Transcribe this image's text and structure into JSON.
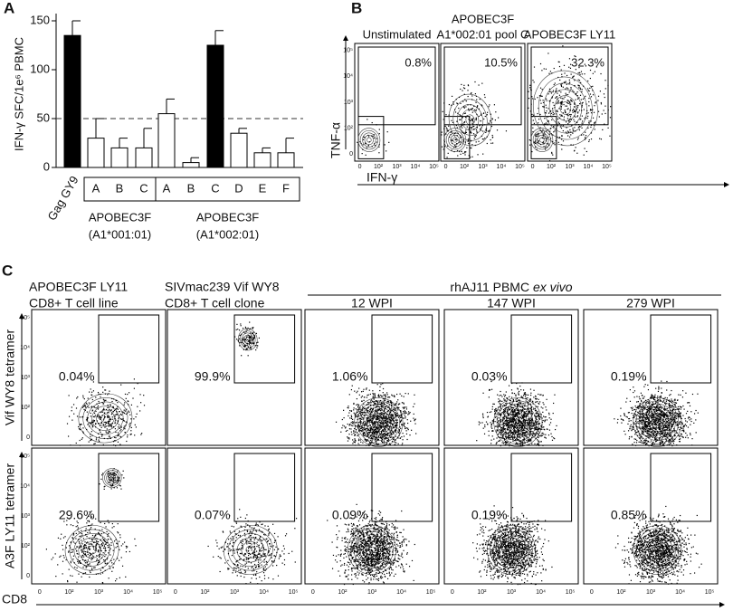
{
  "chart_data": {
    "type": "bar",
    "panel_label": "A",
    "y_label": "IFN-γ SFC/1e⁶ PBMC",
    "categories": [
      "Gag GY9",
      "A",
      "B",
      "C",
      "A",
      "B",
      "C",
      "D",
      "E",
      "F"
    ],
    "values": [
      135,
      30,
      20,
      20,
      55,
      5,
      125,
      35,
      15,
      15
    ],
    "errors": [
      15,
      20,
      10,
      20,
      15,
      5,
      15,
      5,
      5,
      15
    ],
    "colors": [
      "#000000",
      "#ffffff",
      "#ffffff",
      "#ffffff",
      "#ffffff",
      "#ffffff",
      "#000000",
      "#ffffff",
      "#ffffff",
      "#ffffff"
    ],
    "reference_line": 50,
    "groups": [
      {
        "name": "APOBEC3F",
        "allele": "(A1*001:01)"
      },
      {
        "name": "APOBEC3F",
        "allele": "(A1*002:01)"
      }
    ],
    "ylim": [
      0,
      150
    ],
    "yticks": [
      0,
      50,
      100,
      150
    ]
  },
  "panel_b": {
    "label": "B",
    "y_label": "TNF-α",
    "x_label": "IFN-γ",
    "plots": [
      {
        "title": [
          "Unstimulated"
        ],
        "percent": "0.8%"
      },
      {
        "title": [
          "APOBEC3F",
          "A1*002:01 pool C"
        ],
        "percent": "10.5%"
      },
      {
        "title": [
          "APOBEC3F LY11"
        ],
        "percent": "32.3%"
      }
    ]
  },
  "panel_c": {
    "label": "C",
    "columns": [
      [
        "APOBEC3F LY11",
        "CD8+ T cell line"
      ],
      [
        "SIVmac239 Vif WY8",
        "CD8+ T cell clone"
      ],
      [
        "12 WPI"
      ],
      [
        "147 WPI"
      ],
      [
        "279 WPI"
      ]
    ],
    "group_header": {
      "text": "rhAJ11 PBMC",
      "italic": "ex vivo"
    },
    "rows": [
      "Vif WY8 tetramer",
      "A3F LY11 tetramer"
    ],
    "x_label": "CD8",
    "percents": [
      [
        "0.04%",
        "99.9%",
        "1.06%",
        "0.03%",
        "0.19%"
      ],
      [
        "29.6%",
        "0.07%",
        "0.09%",
        "0.19%",
        "0.85%"
      ]
    ]
  },
  "axis_ticks": [
    "0",
    "10²",
    "10³",
    "10⁴",
    "10⁵"
  ]
}
